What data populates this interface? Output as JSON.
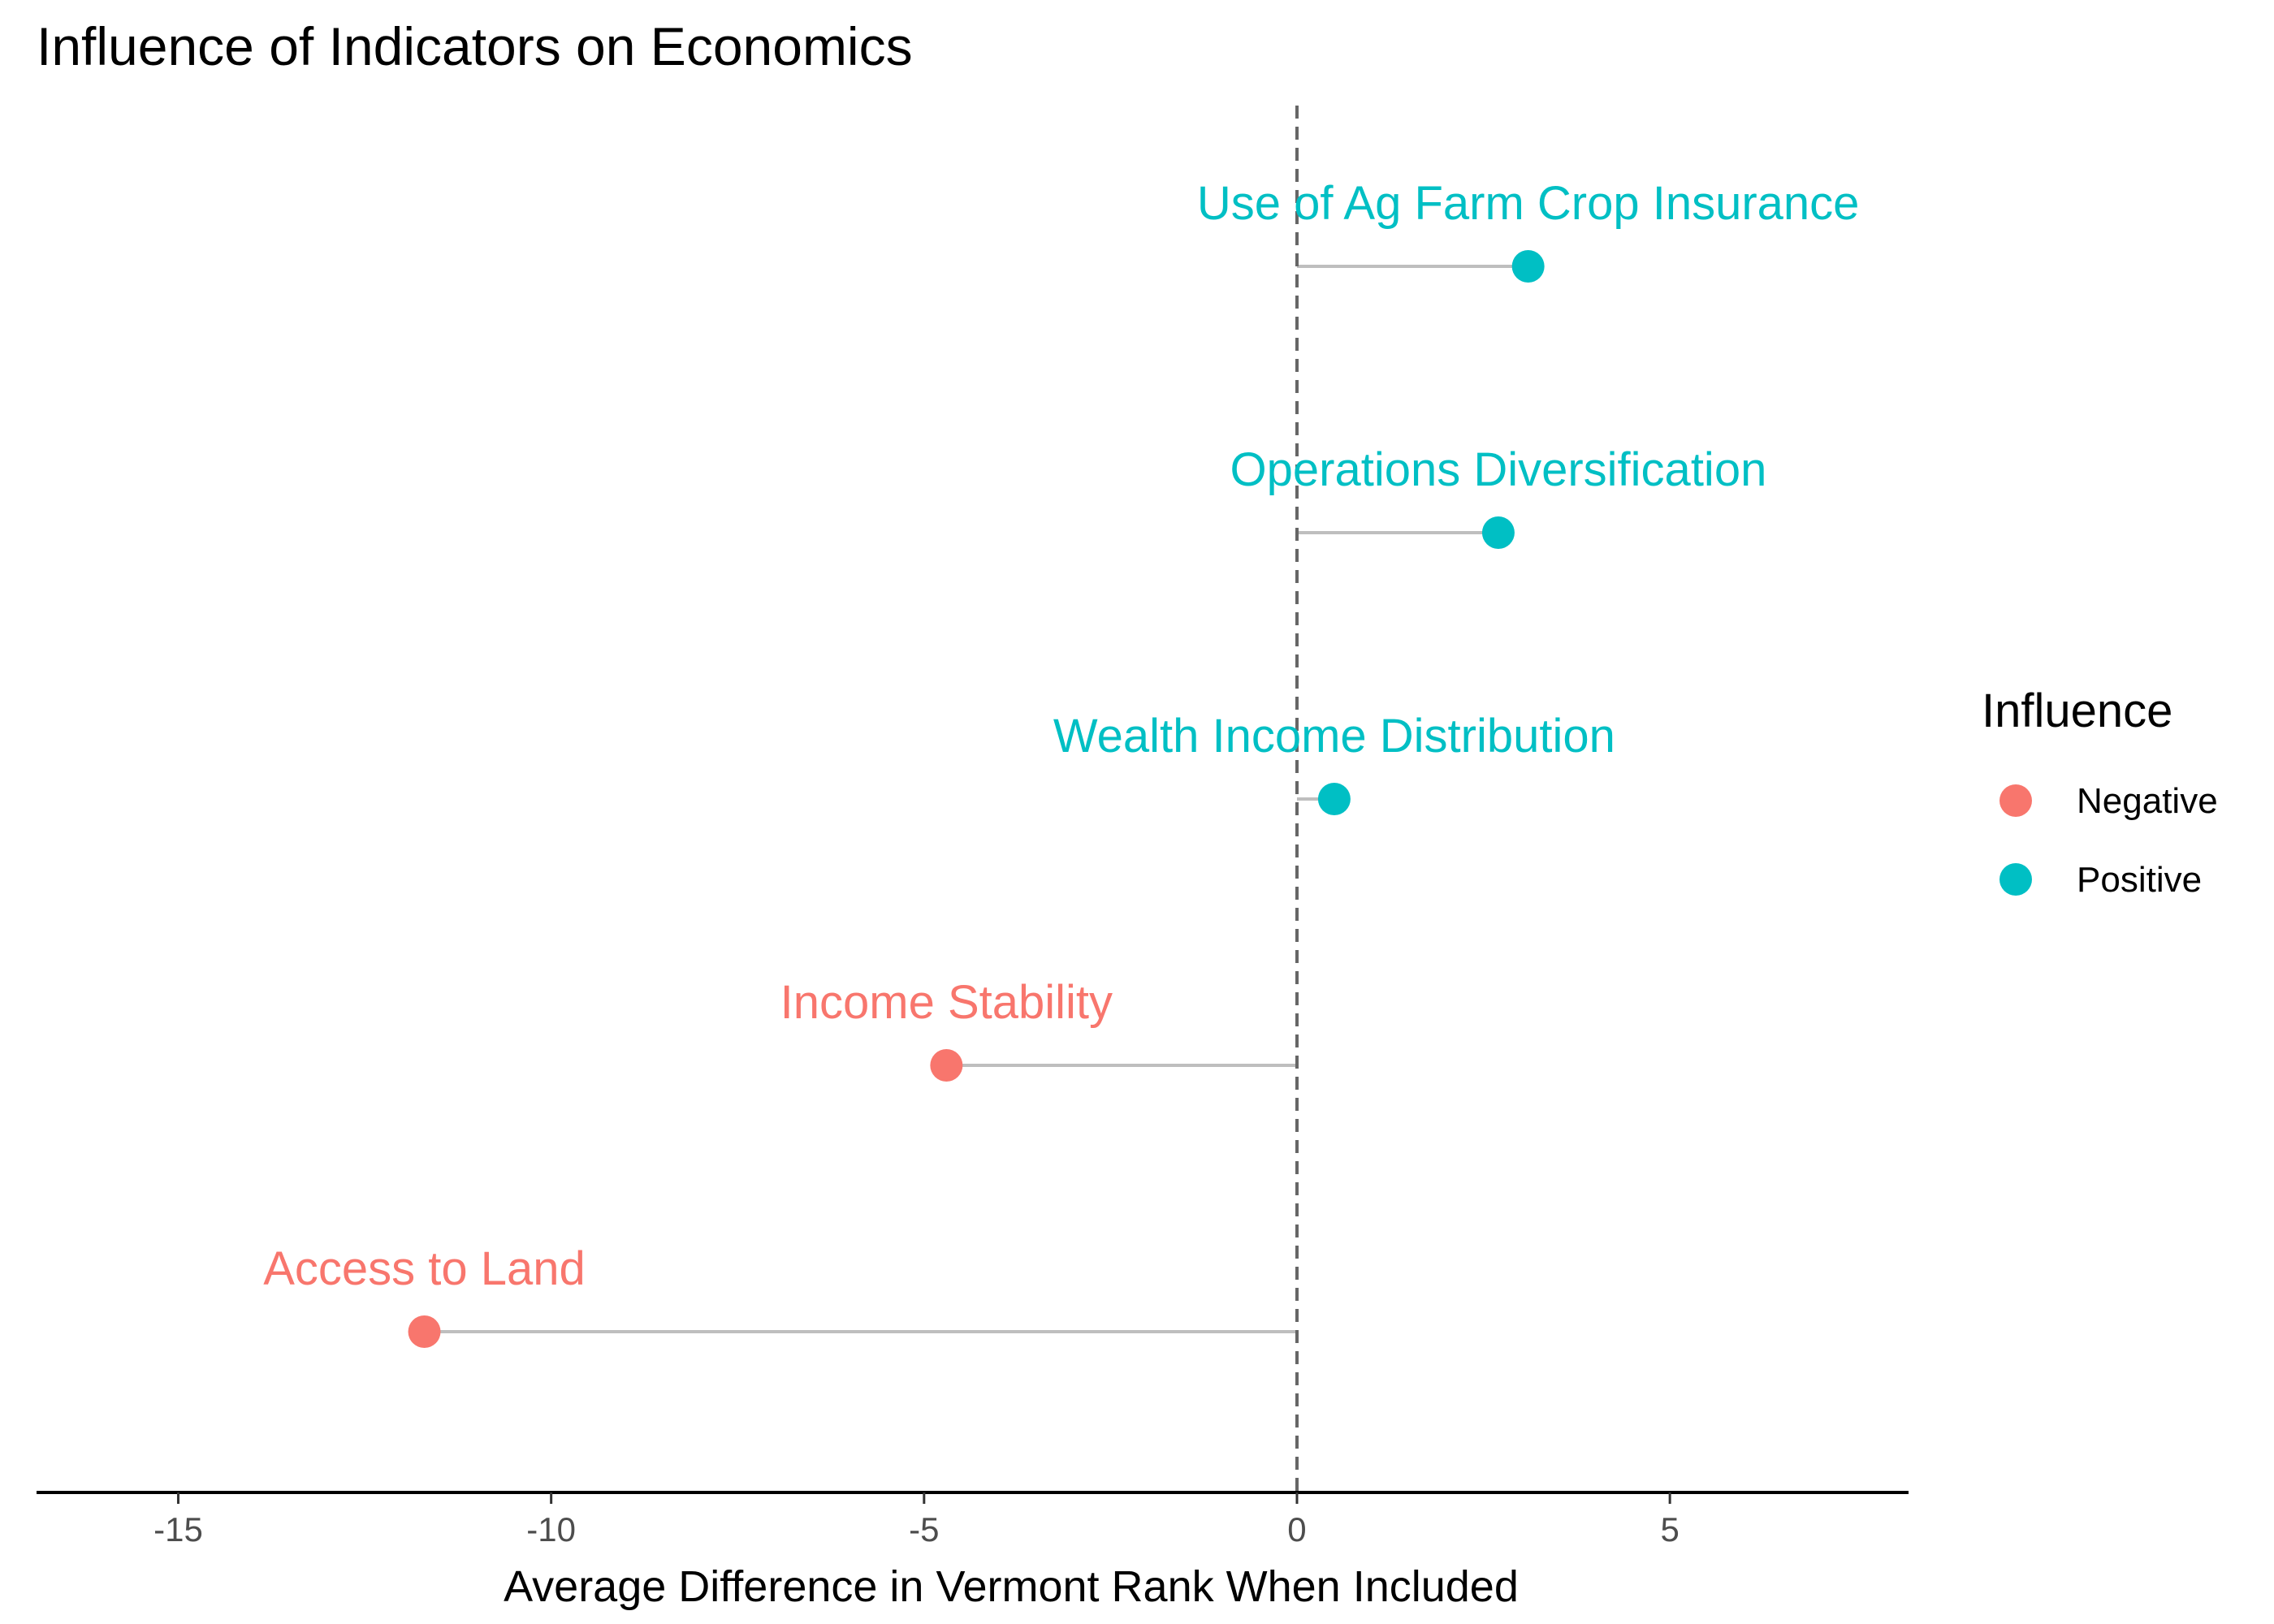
{
  "chart_data": {
    "type": "lollipop",
    "title": "Influence of Indicators on Economics",
    "xlabel": "Average Difference in Vermont Rank When Included",
    "ylabel": "",
    "xlim": [
      -16.9,
      8.2
    ],
    "x_ticks": [
      -15,
      -10,
      -5,
      0,
      5
    ],
    "x_tick_labels": [
      "-15",
      "-10",
      "-5",
      "0",
      "5"
    ],
    "reference_line_x": 0,
    "grid": false,
    "legend": {
      "title": "Influence",
      "placement": "right",
      "entries": [
        {
          "label": "Negative",
          "color": "#F8766D"
        },
        {
          "label": "Positive",
          "color": "#00BFC4"
        }
      ]
    },
    "points": [
      {
        "label": "Use of Ag Farm Crop Insurance",
        "value": 3.1,
        "influence": "Positive"
      },
      {
        "label": "Operations Diversification",
        "value": 2.7,
        "influence": "Positive"
      },
      {
        "label": "Wealth Income Distribution",
        "value": 0.5,
        "influence": "Positive"
      },
      {
        "label": "Income Stability",
        "value": -4.7,
        "influence": "Negative"
      },
      {
        "label": "Access to Land",
        "value": -11.7,
        "influence": "Negative"
      }
    ],
    "colors": {
      "Negative": "#F8766D",
      "Positive": "#00BFC4",
      "segment": "#BEBEBE",
      "reference": "#666666",
      "axis": "#000000"
    }
  }
}
